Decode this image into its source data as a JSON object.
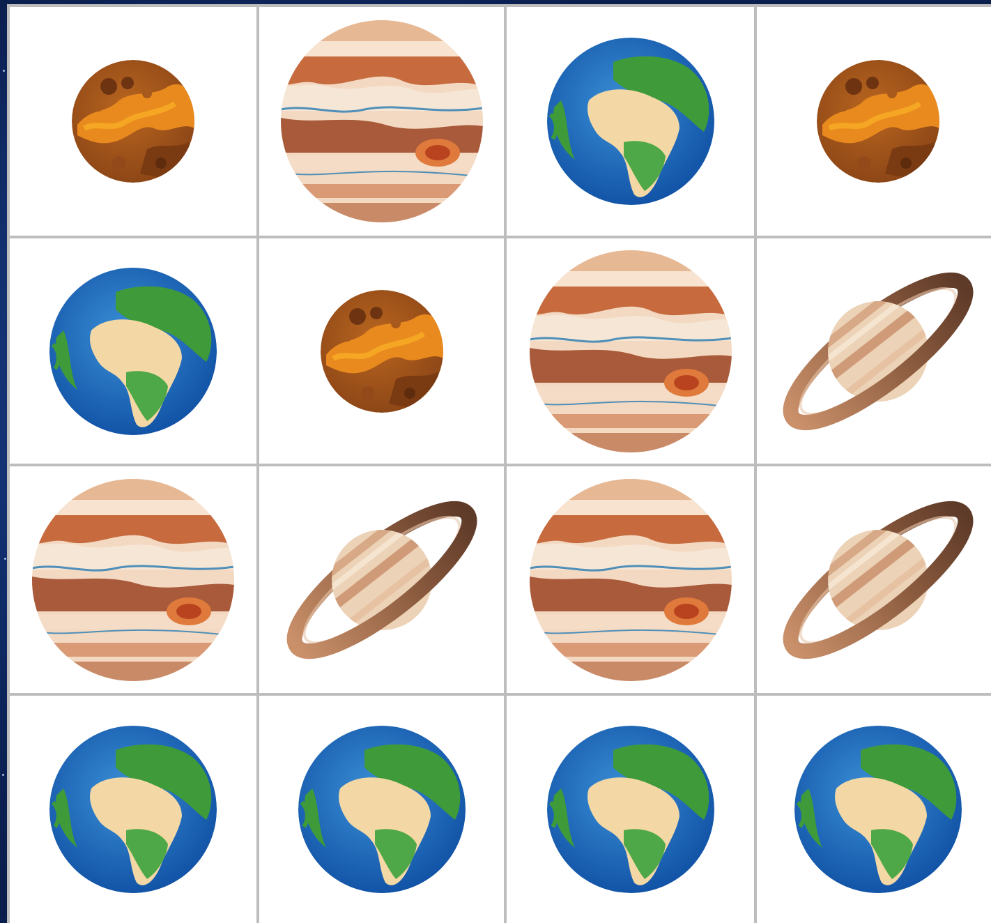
{
  "game": {
    "grid": {
      "rows": 4,
      "cols": 4,
      "cells": [
        "mars-icon",
        "jupiter-icon",
        "earth-icon",
        "mars-icon",
        "earth-icon",
        "mars-icon",
        "jupiter-icon",
        "saturn-icon",
        "jupiter-icon",
        "saturn-icon",
        "jupiter-icon",
        "saturn-icon",
        "earth-icon",
        "earth-icon",
        "earth-icon",
        "earth-icon"
      ]
    },
    "colors": {
      "background": "#0d2a66",
      "grid_line": "#bdbdbd",
      "cell": "#ffffff",
      "mars": "#a0521d",
      "jupiter": "#d9a27c",
      "earth": "#1f6bc2",
      "saturn": "#e2bfa0"
    }
  }
}
